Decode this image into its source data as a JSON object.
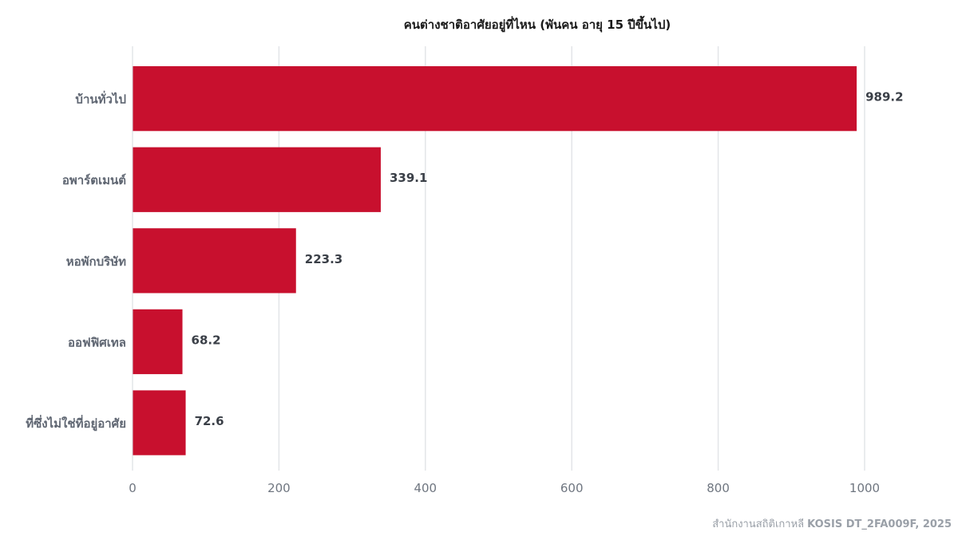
{
  "chart_data": {
    "type": "bar",
    "orientation": "horizontal",
    "title": "คนต่างชาติอาศัยอยู่ที่ไหน (พันคน อายุ 15 ปีขึ้นไป)",
    "categories": [
      "บ้านทั่วไป",
      "อพาร์ตเมนต์",
      "หอพักบริษัท",
      "ออฟฟิศเทล",
      "ที่ซึ่งไม่ใช่ที่อยู่อาศัย"
    ],
    "values": [
      989.2,
      339.1,
      223.3,
      68.2,
      72.6
    ],
    "value_labels": [
      "989.2",
      "339.1",
      "223.3",
      "68.2",
      "72.6"
    ],
    "xlim": [
      0,
      1000
    ],
    "xticks": [
      0,
      200,
      400,
      600,
      800,
      1000
    ],
    "xtick_labels": [
      "0",
      "200",
      "400",
      "600",
      "800",
      "1000"
    ],
    "grid": true,
    "legend": "none",
    "bar_color": "#c8102e"
  },
  "source": {
    "prefix": "สำนักงานสถิติเกาหลี",
    "detail": "KOSIS DT_2FA009F, 2025"
  }
}
